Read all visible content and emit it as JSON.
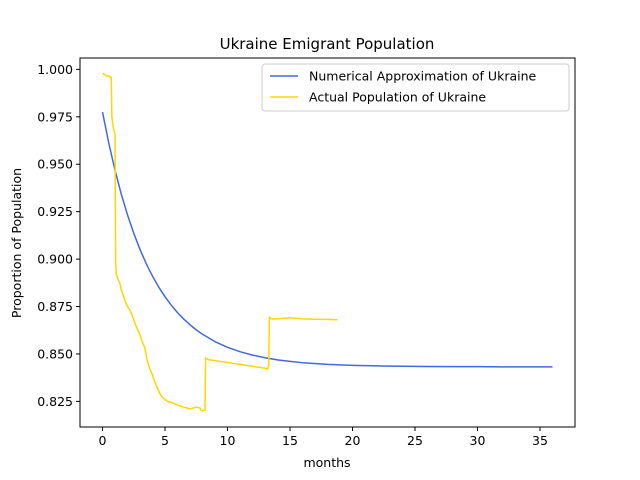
{
  "chart_data": {
    "type": "line",
    "title": "Ukraine Emigrant Population",
    "xlabel": "months",
    "ylabel": "Proportion of Population",
    "xlim": [
      -1.8,
      37.8
    ],
    "ylim": [
      0.8115,
      1.006
    ],
    "x_ticks": [
      0,
      5,
      10,
      15,
      20,
      25,
      30,
      35
    ],
    "x_tick_labels": [
      "0",
      "5",
      "10",
      "15",
      "20",
      "25",
      "30",
      "35"
    ],
    "y_ticks": [
      0.825,
      0.85,
      0.875,
      0.9,
      0.925,
      0.95,
      0.975,
      1.0
    ],
    "y_tick_labels": [
      "0.825",
      "0.850",
      "0.875",
      "0.900",
      "0.925",
      "0.950",
      "0.975",
      "1.000"
    ],
    "grid": false,
    "legend_position": "top-right",
    "series": [
      {
        "name": "Numerical Approximation of Ukraine",
        "color": "#4169e1",
        "x": [
          0,
          0.5,
          1,
          1.5,
          2,
          2.5,
          3,
          3.5,
          4,
          4.5,
          5,
          5.5,
          6,
          6.5,
          7,
          7.5,
          8,
          9,
          10,
          11,
          12,
          13,
          14,
          15,
          16,
          18,
          20,
          22,
          24,
          26,
          28,
          30,
          32,
          34,
          36
        ],
        "values": [
          0.9775,
          0.9612,
          0.9469,
          0.9343,
          0.9233,
          0.9136,
          0.9051,
          0.8976,
          0.891,
          0.8852,
          0.8802,
          0.8757,
          0.8718,
          0.8684,
          0.8654,
          0.8627,
          0.8604,
          0.8565,
          0.8535,
          0.8512,
          0.8494,
          0.848,
          0.8469,
          0.8461,
          0.8454,
          0.8445,
          0.844,
          0.8437,
          0.8435,
          0.8434,
          0.8433,
          0.8433,
          0.8432,
          0.8432,
          0.8432
        ]
      },
      {
        "name": "Actual Population of Ukraine",
        "color": "#ffd700",
        "x": [
          0,
          0.2,
          0.35,
          0.5,
          0.6,
          0.7,
          0.75,
          0.8,
          0.9,
          1.0,
          1.05,
          1.1,
          1.15,
          1.2,
          1.4,
          1.5,
          1.6,
          1.7,
          1.8,
          2.0,
          2.2,
          2.4,
          2.6,
          2.8,
          3.0,
          3.2,
          3.4,
          3.5,
          3.6,
          3.8,
          4.0,
          4.2,
          4.4,
          4.6,
          4.8,
          5.0,
          5.2,
          5.5,
          6.0,
          6.5,
          7.0,
          7.5,
          7.8,
          7.85,
          8.0,
          8.2,
          8.25,
          8.3,
          8.5,
          9.0,
          9.5,
          10.0,
          10.5,
          11.0,
          11.5,
          12.0,
          12.5,
          13.0,
          13.2,
          13.3,
          13.35,
          13.5,
          14.0,
          14.5,
          15.0,
          15.5,
          16.0,
          16.5,
          17.0,
          17.5,
          18.0,
          18.5,
          18.8
        ],
        "values": [
          0.998,
          0.997,
          0.9965,
          0.9965,
          0.996,
          0.996,
          0.975,
          0.972,
          0.968,
          0.966,
          0.9,
          0.892,
          0.891,
          0.89,
          0.887,
          0.884,
          0.882,
          0.88,
          0.878,
          0.875,
          0.873,
          0.87,
          0.866,
          0.863,
          0.86,
          0.856,
          0.853,
          0.849,
          0.846,
          0.842,
          0.839,
          0.835,
          0.832,
          0.829,
          0.827,
          0.826,
          0.825,
          0.8245,
          0.823,
          0.822,
          0.821,
          0.822,
          0.8215,
          0.8205,
          0.82,
          0.8205,
          0.848,
          0.8475,
          0.847,
          0.8465,
          0.846,
          0.8455,
          0.845,
          0.8445,
          0.844,
          0.8435,
          0.843,
          0.8425,
          0.842,
          0.844,
          0.8695,
          0.8685,
          0.8685,
          0.8688,
          0.869,
          0.8688,
          0.8685,
          0.8684,
          0.8683,
          0.8682,
          0.8682,
          0.8681,
          0.868
        ]
      }
    ]
  }
}
